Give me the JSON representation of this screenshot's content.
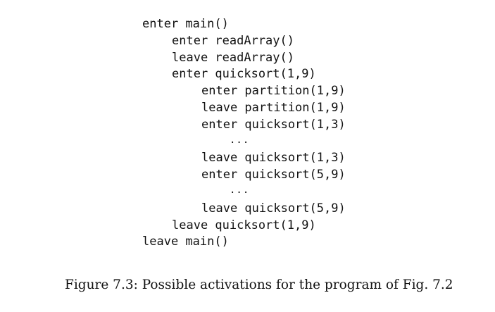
{
  "trace": {
    "lines": [
      {
        "text": "enter main()",
        "level": 0
      },
      {
        "text": "enter readArray()",
        "level": 1
      },
      {
        "text": "leave readArray()",
        "level": 1
      },
      {
        "text": "enter quicksort(1,9)",
        "level": 1
      },
      {
        "text": "enter partition(1,9)",
        "level": 2
      },
      {
        "text": "leave partition(1,9)",
        "level": 2
      },
      {
        "text": "enter quicksort(1,3)",
        "level": 2
      },
      {
        "text": "...",
        "level": 3
      },
      {
        "text": "leave quicksort(1,3)",
        "level": 2
      },
      {
        "text": "enter quicksort(5,9)",
        "level": 2
      },
      {
        "text": "...",
        "level": 3
      },
      {
        "text": "leave quicksort(5,9)",
        "level": 2
      },
      {
        "text": "leave quicksort(1,9)",
        "level": 1
      },
      {
        "text": "leave main()",
        "level": 0
      }
    ]
  },
  "caption": "Figure 7.3: Possible activations for the program of Fig. 7.2"
}
